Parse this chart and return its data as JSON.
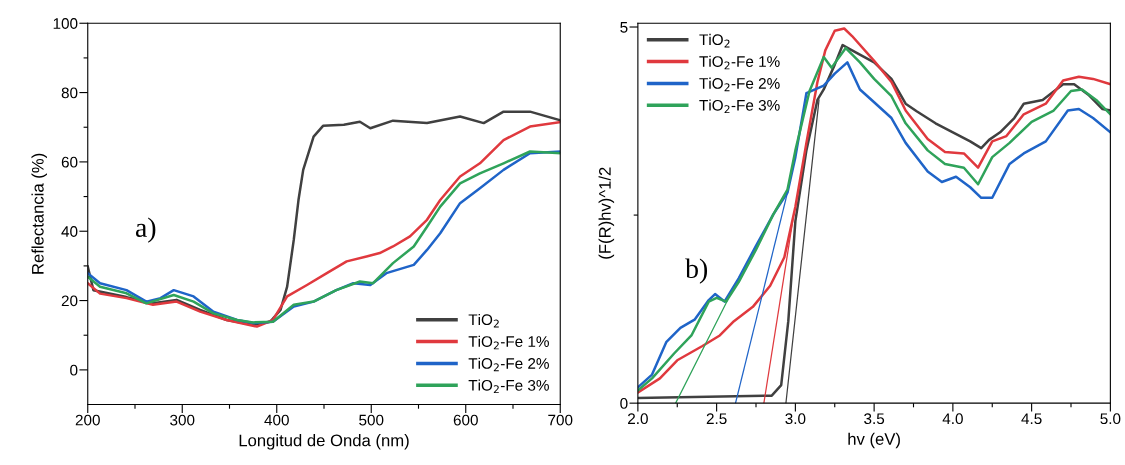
{
  "chart_data": [
    {
      "type": "line",
      "xlabel": "Longitud de Onda (nm)",
      "ylabel": "Reflectancia (%)",
      "xlim": [
        200,
        700
      ],
      "ylim": [
        -10,
        100
      ],
      "xticks": [
        200,
        {
          "value": 250,
          "label": null
        },
        300,
        {
          "value": 350,
          "label": null
        },
        400,
        {
          "value": 450,
          "label": null
        },
        500,
        {
          "value": 550,
          "label": null
        },
        600,
        {
          "value": 650,
          "label": null
        },
        700
      ],
      "yticks": [
        0,
        {
          "value": 10,
          "label": null
        },
        20,
        {
          "value": 30,
          "label": null
        },
        40,
        {
          "value": 50,
          "label": null
        },
        60,
        {
          "value": 70,
          "label": null
        },
        80,
        {
          "value": 90,
          "label": null
        },
        100
      ],
      "grid": false,
      "legend": "bottom right",
      "line_style": "solid",
      "annotations": [
        "a)"
      ],
      "series": [
        {
          "name": "TiO$_{2}$",
          "color": "#404040",
          "x": [
            200,
            206,
            241,
            269,
            294,
            319,
            347,
            375,
            393,
            404,
            411,
            418,
            423,
            428,
            439,
            449,
            471,
            488,
            499,
            523,
            559,
            594,
            619,
            640,
            668,
            700
          ],
          "values": [
            29.8,
            23,
            21,
            19.2,
            20.2,
            17.3,
            14.4,
            13.0,
            13.9,
            17.3,
            24,
            37.5,
            49,
            57.7,
            67.3,
            70.4,
            70.7,
            71.6,
            69.7,
            71.9,
            71.2,
            73.1,
            71.2,
            74.5,
            74.5,
            72
          ]
        },
        {
          "name": "TiO$_{2}$-Fe 1%",
          "color": "#e0393e",
          "x": [
            200,
            213,
            241,
            269,
            294,
            319,
            347,
            379,
            396,
            411,
            432,
            453,
            474,
            495,
            509,
            523,
            541,
            559,
            573,
            594,
            615,
            640,
            668,
            700
          ],
          "values": [
            25,
            22,
            20.7,
            18.8,
            19.7,
            16.8,
            14.4,
            12.5,
            14.4,
            21.2,
            24.5,
            27.9,
            31.3,
            32.7,
            33.7,
            35.6,
            38.5,
            43.3,
            49,
            55.8,
            59.6,
            66.3,
            70.2,
            71.5
          ]
        },
        {
          "name": "TiO$_{2}$-Fe 2%",
          "color": "#1f64c8",
          "x": [
            200,
            213,
            241,
            262,
            277,
            291,
            312,
            333,
            358,
            375,
            396,
            418,
            439,
            463,
            481,
            499,
            516,
            545,
            559,
            573,
            594,
            615,
            640,
            668,
            700
          ],
          "values": [
            27.9,
            25,
            23,
            19.7,
            20.7,
            23,
            21.2,
            16.8,
            14.4,
            13.5,
            13.9,
            18.3,
            19.7,
            23,
            25,
            24.5,
            27.9,
            30.3,
            34.6,
            39.4,
            48.1,
            52.4,
            57.7,
            62.5,
            63
          ]
        },
        {
          "name": "TiO$_{2}$-Fe 3%",
          "color": "#2fa35a",
          "x": [
            200,
            213,
            241,
            262,
            291,
            312,
            333,
            358,
            375,
            396,
            418,
            439,
            463,
            488,
            502,
            523,
            545,
            559,
            573,
            594,
            615,
            640,
            668,
            700
          ],
          "values": [
            26.9,
            24,
            22.1,
            19.2,
            21.6,
            19.7,
            16.3,
            14.4,
            13.7,
            13.9,
            18.8,
            19.7,
            23,
            25.5,
            25,
            30.8,
            35.6,
            41.3,
            47.1,
            53.8,
            56.7,
            59.6,
            63,
            62.5
          ]
        }
      ]
    },
    {
      "type": "line",
      "xlabel": "hv (eV)",
      "ylabel": "(F(R)hv)^1/2",
      "xlim": [
        2.0,
        5.0
      ],
      "ylim": [
        0,
        5.05
      ],
      "xticks": [
        {
          "value": 2.0,
          "label": "2.0"
        },
        {
          "value": 2.25,
          "label": null
        },
        {
          "value": 2.5,
          "label": "2.5"
        },
        {
          "value": 2.75,
          "label": null
        },
        {
          "value": 3.0,
          "label": "3.0"
        },
        {
          "value": 3.25,
          "label": null
        },
        {
          "value": 3.5,
          "label": "3.5"
        },
        {
          "value": 3.75,
          "label": null
        },
        {
          "value": 4.0,
          "label": "4.0"
        },
        {
          "value": 4.25,
          "label": null
        },
        {
          "value": 4.5,
          "label": "4.5"
        },
        {
          "value": 4.75,
          "label": null
        },
        {
          "value": 5.0,
          "label": "5.0"
        }
      ],
      "yticks": [
        0,
        {
          "value": 2.5,
          "label": null
        },
        5
      ],
      "grid": false,
      "legend": "top left",
      "line_style": "solid",
      "annotations": [
        "b)"
      ],
      "series": [
        {
          "name": "TiO$_{2}$",
          "color": "#404040",
          "x": [
            2.0,
            2.85,
            2.91,
            2.955,
            3.0,
            3.07,
            3.14,
            3.18,
            3.25,
            3.3,
            3.36,
            3.5,
            3.61,
            3.7,
            3.77,
            3.89,
            4.0,
            4.11,
            4.18,
            4.23,
            4.3,
            4.39,
            4.45,
            4.57,
            4.7,
            4.77,
            4.86,
            4.95,
            5.0
          ],
          "values": [
            0.07,
            0.1,
            0.24,
            1.09,
            2.42,
            3.36,
            4.03,
            4.17,
            4.5,
            4.76,
            4.69,
            4.53,
            4.31,
            3.98,
            3.88,
            3.72,
            3.6,
            3.48,
            3.39,
            3.5,
            3.6,
            3.79,
            3.98,
            4.03,
            4.24,
            4.24,
            4.1,
            3.91,
            3.89
          ]
        },
        {
          "name": "TiO$_{2}$-Fe 1%",
          "color": "#e0393e",
          "x": [
            2.0,
            2.14,
            2.25,
            2.41,
            2.52,
            2.61,
            2.73,
            2.84,
            2.93,
            3.0,
            3.07,
            3.14,
            3.19,
            3.25,
            3.31,
            3.36,
            3.5,
            3.61,
            3.7,
            3.84,
            3.95,
            4.07,
            4.16,
            4.25,
            4.34,
            4.45,
            4.59,
            4.7,
            4.8,
            4.89,
            5.0
          ],
          "values": [
            0.14,
            0.33,
            0.57,
            0.76,
            0.9,
            1.09,
            1.28,
            1.56,
            1.94,
            2.61,
            3.46,
            4.27,
            4.69,
            4.95,
            4.98,
            4.88,
            4.55,
            4.27,
            3.89,
            3.51,
            3.34,
            3.32,
            3.13,
            3.48,
            3.55,
            3.84,
            3.98,
            4.29,
            4.34,
            4.31,
            4.24
          ]
        },
        {
          "name": "TiO$_{2}$-Fe 2%",
          "color": "#1f64c8",
          "x": [
            2.0,
            2.09,
            2.18,
            2.27,
            2.36,
            2.45,
            2.49,
            2.55,
            2.64,
            2.75,
            2.86,
            2.95,
            3.0,
            3.07,
            3.18,
            3.25,
            3.33,
            3.41,
            3.5,
            3.61,
            3.7,
            3.84,
            3.93,
            4.02,
            4.11,
            4.18,
            4.25,
            4.36,
            4.45,
            4.59,
            4.73,
            4.8,
            4.89,
            5.0
          ],
          "values": [
            0.21,
            0.38,
            0.81,
            1.0,
            1.11,
            1.37,
            1.45,
            1.35,
            1.66,
            2.09,
            2.51,
            2.8,
            3.27,
            4.12,
            4.22,
            4.38,
            4.53,
            4.17,
            4.0,
            3.79,
            3.46,
            3.08,
            2.94,
            3.01,
            2.87,
            2.73,
            2.73,
            3.18,
            3.32,
            3.48,
            3.89,
            3.91,
            3.79,
            3.6
          ]
        },
        {
          "name": "TiO$_{2}$-Fe 3%",
          "color": "#2fa35a",
          "x": [
            2.0,
            2.09,
            2.23,
            2.34,
            2.45,
            2.5,
            2.56,
            2.64,
            2.75,
            2.86,
            2.95,
            3.0,
            3.09,
            3.18,
            3.23,
            3.32,
            3.41,
            3.5,
            3.61,
            3.7,
            3.84,
            3.95,
            4.07,
            4.16,
            4.25,
            4.36,
            4.5,
            4.64,
            4.75,
            4.82,
            4.91,
            5.0
          ],
          "values": [
            0.17,
            0.33,
            0.66,
            0.9,
            1.35,
            1.4,
            1.35,
            1.61,
            2.04,
            2.51,
            2.84,
            3.36,
            4.15,
            4.6,
            4.46,
            4.72,
            4.53,
            4.31,
            4.08,
            3.72,
            3.36,
            3.18,
            3.13,
            2.91,
            3.27,
            3.46,
            3.74,
            3.89,
            4.15,
            4.17,
            4.03,
            3.84
          ]
        },
        {
          "type": "line",
          "color": "#404040",
          "x": [
            2.94,
            3.15
          ],
          "values": [
            0,
            4.03
          ]
        },
        {
          "type": "line",
          "color": "#e0393e",
          "x": [
            2.8,
            2.99
          ],
          "values": [
            0,
            2.51
          ]
        },
        {
          "type": "line",
          "color": "#1f64c8",
          "x": [
            2.62,
            2.95
          ],
          "values": [
            0,
            2.8
          ]
        },
        {
          "type": "line",
          "color": "#2fa35a",
          "x": [
            2.24,
            2.57
          ],
          "values": [
            0,
            1.37
          ]
        }
      ]
    }
  ]
}
